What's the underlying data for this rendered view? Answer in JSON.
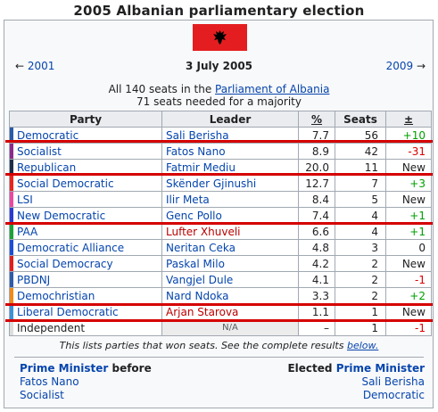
{
  "title": "2005 Albanian parliamentary election",
  "nav": {
    "prev": "2001",
    "date": "3 July 2005",
    "next": "2009"
  },
  "summary": {
    "line1_prefix": "All 140 seats in the",
    "line1_link": "Parliament of Albania",
    "line2": "71 seats needed for a majority"
  },
  "table": {
    "headers": [
      "Party",
      "Leader",
      "%",
      "Seats",
      "±"
    ],
    "rows": [
      {
        "party": "Democratic",
        "leader": "Sali Berisha",
        "pct": "7.7",
        "seats": "56",
        "diff": "+10",
        "color": "#2b5aa8"
      },
      {
        "party": "Socialist",
        "leader": "Fatos Nano",
        "pct": "8.9",
        "seats": "42",
        "diff": "-31",
        "color": "#8b2a8b"
      },
      {
        "party": "Republican",
        "leader": "Fatmir Mediu",
        "pct": "20.0",
        "seats": "11",
        "diff": "New",
        "color": "#1c2f4a"
      },
      {
        "party": "Social Democratic",
        "leader": "Skënder Gjinushi",
        "pct": "12.7",
        "seats": "7",
        "diff": "+3",
        "color": "#e8241f"
      },
      {
        "party": "LSI",
        "leader": "Ilir Meta",
        "pct": "8.4",
        "seats": "5",
        "diff": "New",
        "color": "#e84aa0"
      },
      {
        "party": "New Democratic",
        "leader": "Genc Pollo",
        "pct": "7.4",
        "seats": "4",
        "diff": "+1",
        "color": "#2a3ad0"
      },
      {
        "party": "PAA",
        "leader": "Lufter Xhuveli",
        "pct": "6.6",
        "seats": "4",
        "diff": "+1",
        "color": "#1ca13a"
      },
      {
        "party": "Democratic Alliance",
        "leader": "Neritan Ceka",
        "pct": "4.8",
        "seats": "3",
        "diff": "0",
        "color": "#1c4fd6"
      },
      {
        "party": "Social Democracy",
        "leader": "Paskal Milo",
        "pct": "4.2",
        "seats": "2",
        "diff": "New",
        "color": "#e02020"
      },
      {
        "party": "PBDNJ",
        "leader": "Vangjel Dule",
        "pct": "4.1",
        "seats": "2",
        "diff": "-1",
        "color": "#2f5ca8"
      },
      {
        "party": "Demochristian",
        "leader": "Nard Ndoka",
        "pct": "3.3",
        "seats": "2",
        "diff": "+2",
        "color": "#f08a1a"
      },
      {
        "party": "Liberal Democratic",
        "leader": "Arjan Starova",
        "pct": "1.1",
        "seats": "1",
        "diff": "New",
        "color": "#3e8fd6"
      },
      {
        "party": "Independent",
        "leader": "N/A",
        "pct": "–",
        "seats": "1",
        "diff": "-1",
        "color": "#dddddd"
      }
    ]
  },
  "note": {
    "text": "This lists parties that won seats. See the complete results",
    "link": "below."
  },
  "pm": {
    "left_label": "Prime Minister",
    "left_suffix": " before",
    "left_name": "Fatos Nano",
    "left_party": "Socialist",
    "right_prefix": "Elected ",
    "right_label": "Prime Minister",
    "right_name": "Sali Berisha",
    "right_party": "Democratic"
  },
  "colors": {
    "link": "#0645ad",
    "positive": "#00a000",
    "negative": "#dd0000",
    "highlight_line": "#d50000",
    "flag": "#e41e20"
  }
}
